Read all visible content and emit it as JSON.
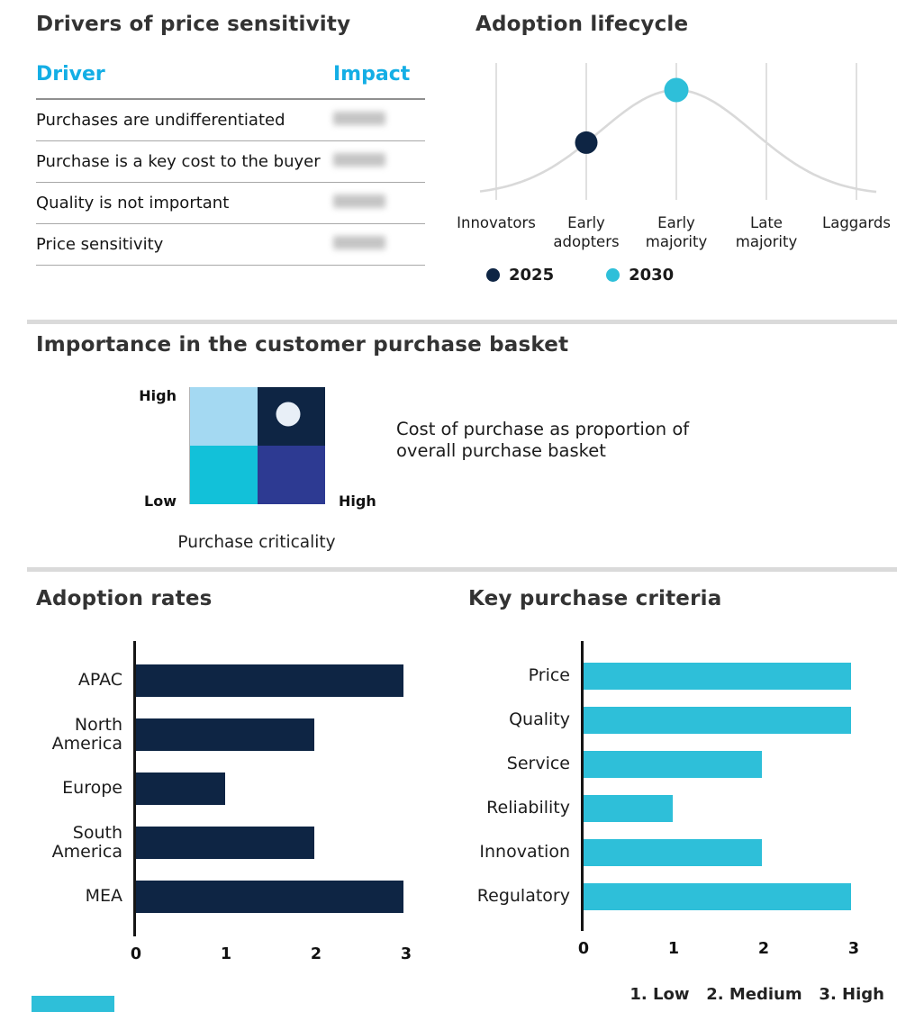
{
  "palette": {
    "navy": "#0e2544",
    "cyan": "#2ebfd9",
    "header_cyan": "#14aee5",
    "light_blue": "#a4d9f2",
    "indigo": "#2d3a92",
    "curve_grey": "#d9d9d9",
    "dot_white": "#e8eff7"
  },
  "drivers": {
    "title": "Drivers of price sensitivity",
    "col_driver": "Driver",
    "col_impact": "Impact",
    "impact_redacted": true,
    "rows": [
      "Purchases are undifferentiated",
      "Purchase is a key cost to the buyer",
      "Quality is not important",
      "Price sensitivity"
    ]
  },
  "lifecycle": {
    "title": "Adoption lifecycle"
  },
  "basket": {
    "title": "Importance in the customer purchase basket",
    "y_top": "High",
    "y_bottom": "Low",
    "x_end": "High",
    "x_label": "Purchase criticality",
    "annotation": "Cost of purchase as proportion of overall purchase basket"
  },
  "adoption": {
    "title": "Adoption rates"
  },
  "criteria": {
    "title": "Key purchase criteria",
    "scale_note": "1. Low   2. Medium   3. High"
  },
  "chart_data": [
    {
      "name": "adoption_lifecycle",
      "type": "line",
      "shape": "bell-curve",
      "categories": [
        "Innovators",
        "Early adopters",
        "Early majority",
        "Late majority",
        "Laggards"
      ],
      "grid": "vertical-lines-per-category",
      "markers": [
        {
          "label": "2025",
          "category": "Early adopters",
          "color_key": "navy"
        },
        {
          "label": "2030",
          "category": "Early majority",
          "color_key": "cyan"
        }
      ],
      "legend": [
        "2025",
        "2030"
      ],
      "legend_position": "bottom"
    },
    {
      "name": "purchase_basket_matrix",
      "type": "heatmap",
      "grid": "2x2",
      "x_axis": "Purchase criticality (Low to High)",
      "y_axis": "Importance (Low to High)",
      "quadrant_colors": {
        "top_left": "#a4d9f2",
        "top_right": "#0e2544",
        "bottom_left": "#12c1d9",
        "bottom_right": "#2d3a92"
      },
      "marker": {
        "quadrant": "top_right"
      }
    },
    {
      "name": "adoption_rates",
      "type": "bar",
      "orientation": "horizontal",
      "categories": [
        "APAC",
        "North America",
        "Europe",
        "South America",
        "MEA"
      ],
      "values": [
        3,
        2,
        1,
        2,
        3
      ],
      "xlim": [
        0,
        3
      ],
      "ticks": [
        0,
        1,
        2,
        3
      ],
      "bar_color": "#0e2544"
    },
    {
      "name": "key_purchase_criteria",
      "type": "bar",
      "orientation": "horizontal",
      "categories": [
        "Price",
        "Quality",
        "Service",
        "Reliability",
        "Innovation",
        "Regulatory"
      ],
      "values": [
        3,
        3,
        2,
        1,
        2,
        3
      ],
      "xlim": [
        0,
        3
      ],
      "ticks": [
        0,
        1,
        2,
        3
      ],
      "bar_color": "#2ebfd9",
      "scale_legend": "1. Low  2. Medium  3. High"
    }
  ]
}
